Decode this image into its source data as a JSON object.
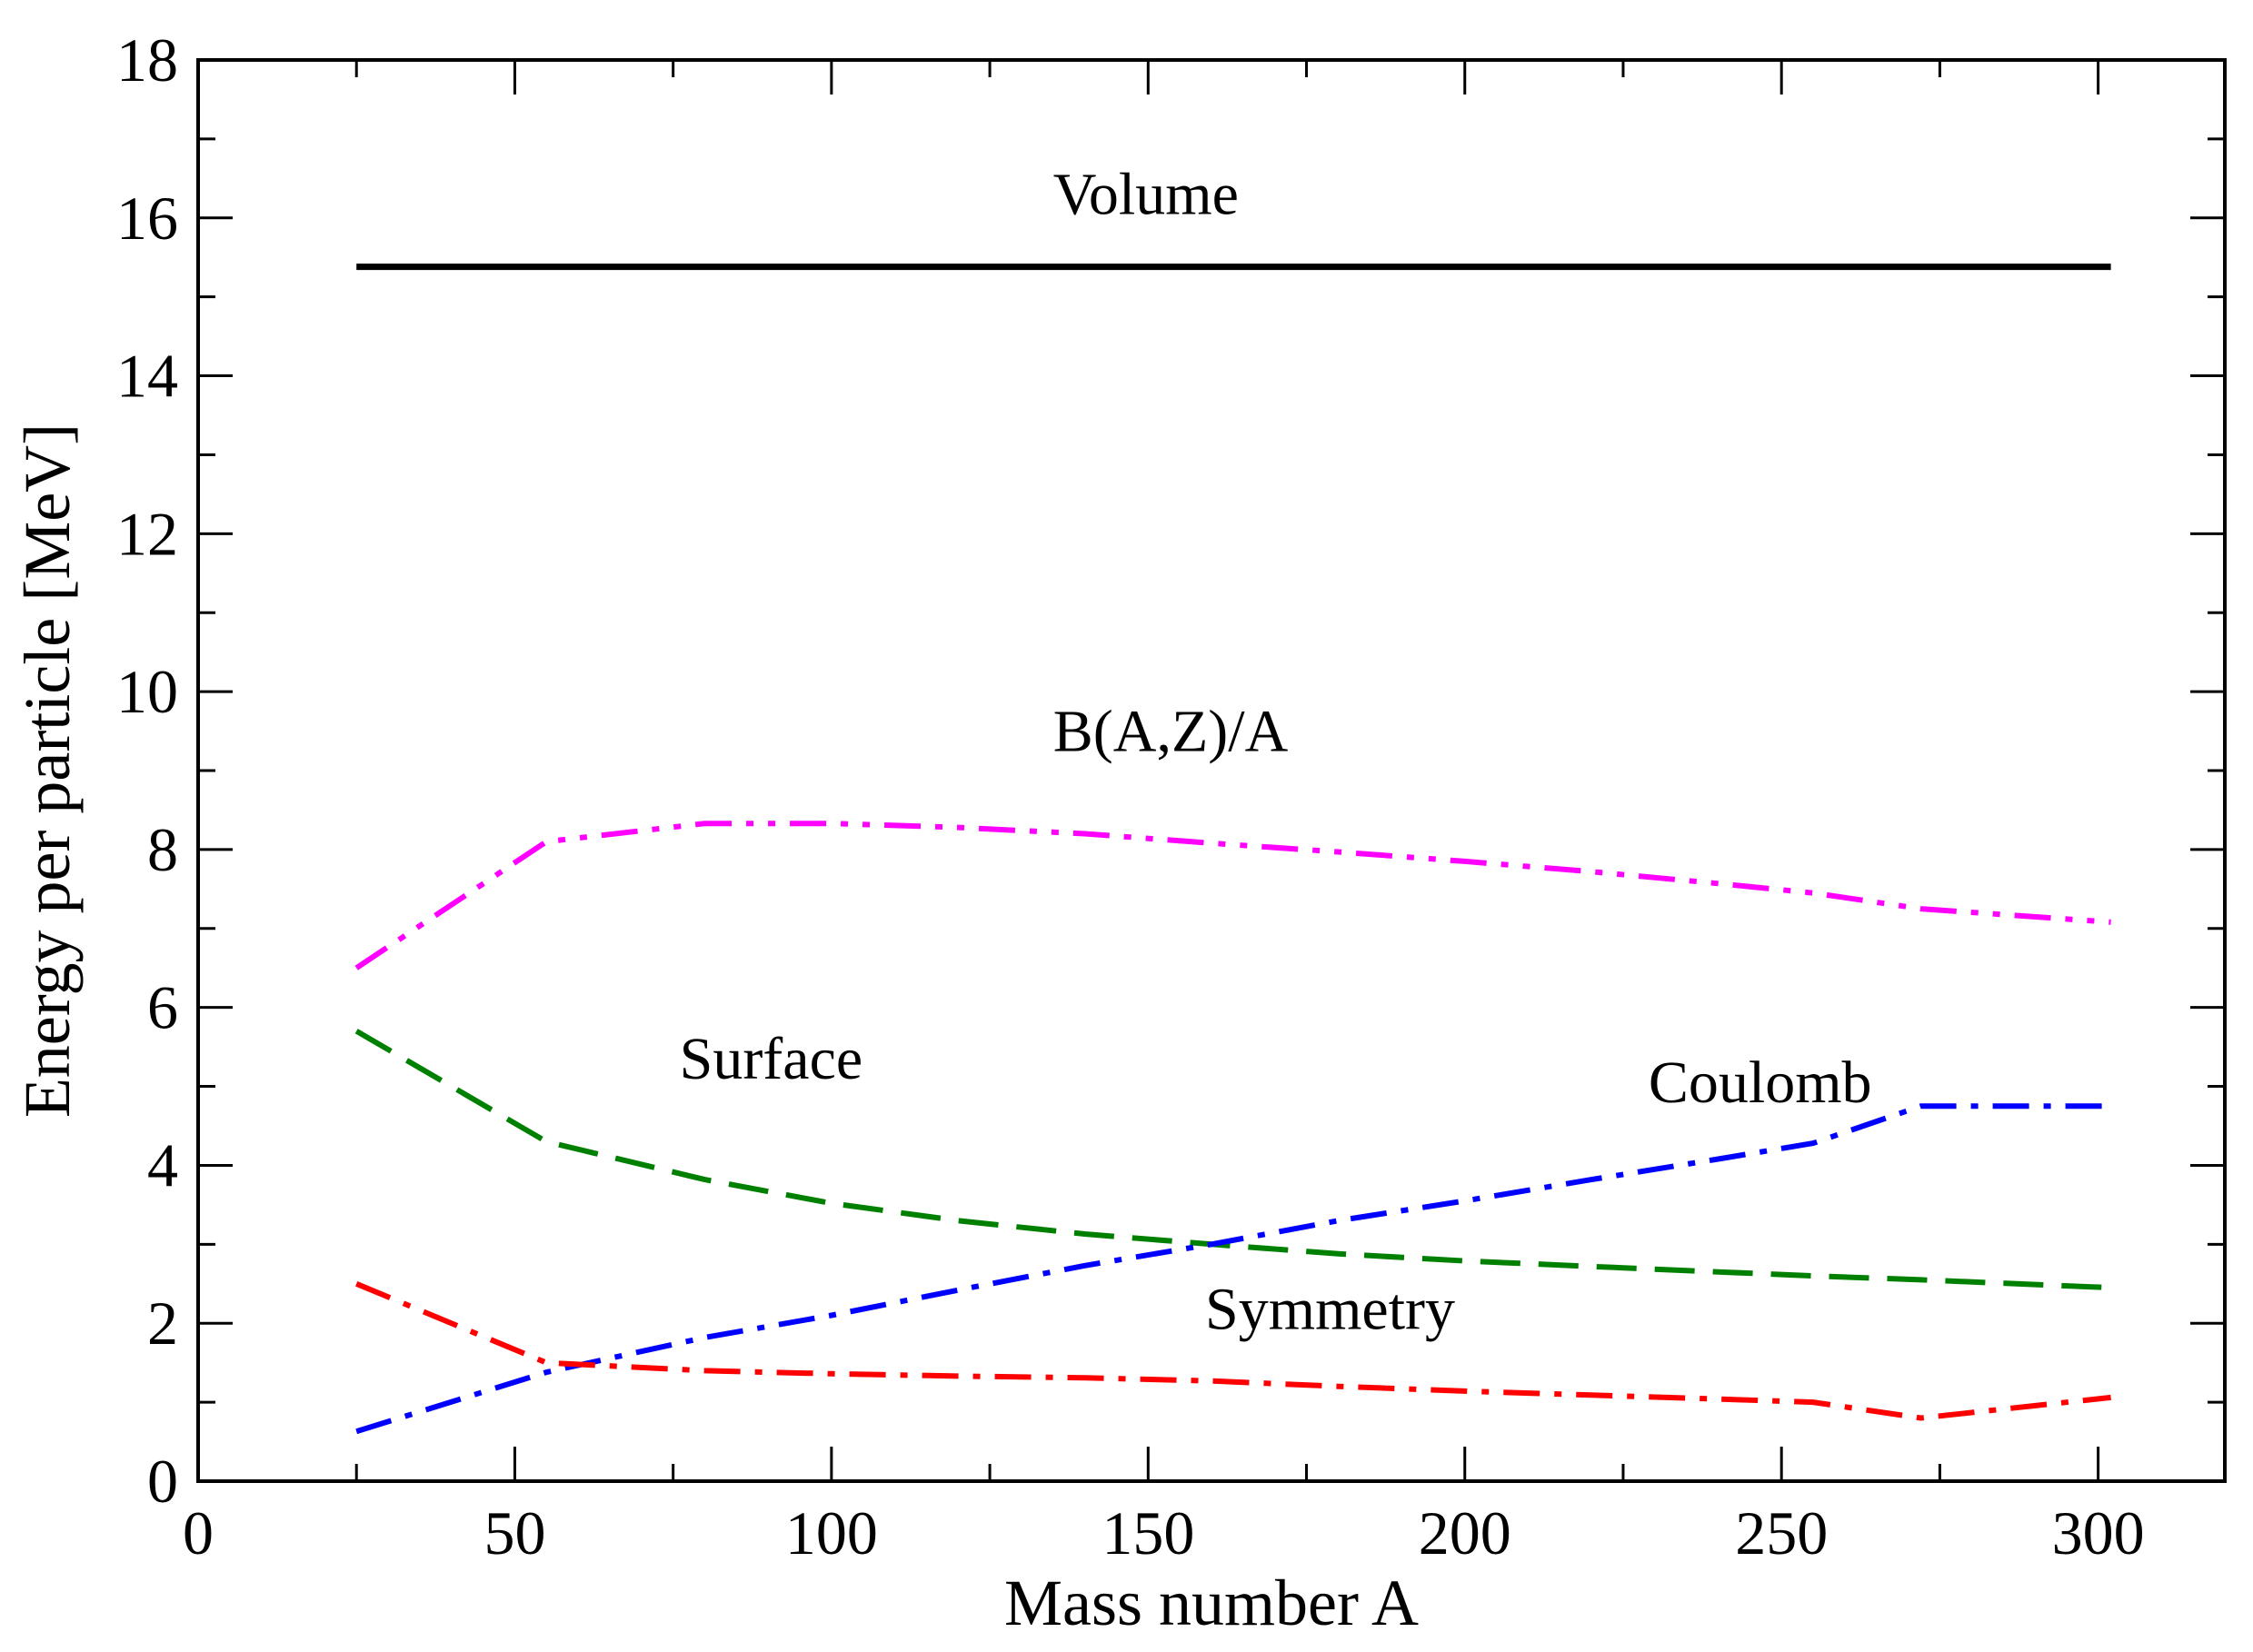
{
  "chart_data": {
    "type": "line",
    "title": "",
    "xlabel": "Mass number A",
    "ylabel": "Energy per particle [MeV]",
    "xlim": [
      0,
      320
    ],
    "ylim": [
      0,
      18
    ],
    "x_ticks": [
      0,
      50,
      100,
      150,
      200,
      250,
      300
    ],
    "y_ticks": [
      0,
      2,
      4,
      6,
      8,
      10,
      12,
      14,
      16,
      18
    ],
    "grid": false,
    "legend": "none",
    "series": [
      {
        "id": "volume",
        "color": "#000000",
        "style": "solid",
        "x": [
          25,
          302
        ],
        "y": [
          15.38,
          15.38
        ]
      },
      {
        "id": "binding",
        "color": "#ff00ff",
        "style": "dash-dot-dot",
        "x": [
          25,
          55,
          80,
          100,
          120,
          140,
          160,
          180,
          200,
          220,
          240,
          255,
          272,
          302
        ],
        "y": [
          6.5,
          8.1,
          8.33,
          8.33,
          8.28,
          8.2,
          8.08,
          7.97,
          7.85,
          7.72,
          7.57,
          7.45,
          7.25,
          7.08
        ]
      },
      {
        "id": "surface",
        "color": "#008000",
        "style": "dashed",
        "x": [
          25,
          55,
          80,
          100,
          120,
          140,
          160,
          180,
          200,
          220,
          240,
          255,
          272,
          302
        ],
        "y": [
          5.7,
          4.3,
          3.82,
          3.52,
          3.3,
          3.13,
          3.0,
          2.88,
          2.79,
          2.72,
          2.65,
          2.6,
          2.55,
          2.45
        ]
      },
      {
        "id": "coulomb",
        "color": "#0000ff",
        "style": "dash-dot",
        "x": [
          25,
          55,
          80,
          100,
          120,
          140,
          160,
          180,
          200,
          220,
          240,
          255,
          272,
          302
        ],
        "y": [
          0.63,
          1.38,
          1.82,
          2.1,
          2.42,
          2.73,
          3.0,
          3.3,
          3.55,
          3.82,
          4.08,
          4.28,
          4.75,
          4.75
        ]
      },
      {
        "id": "symmetry",
        "color": "#ff0000",
        "style": "dash-dot",
        "x": [
          25,
          55,
          80,
          100,
          120,
          140,
          160,
          180,
          200,
          220,
          240,
          255,
          272,
          302
        ],
        "y": [
          2.5,
          1.5,
          1.4,
          1.36,
          1.33,
          1.31,
          1.27,
          1.2,
          1.14,
          1.09,
          1.04,
          1.0,
          0.8,
          1.06
        ]
      }
    ],
    "annotations": [
      {
        "text": "Volume",
        "x": 135,
        "y": 16.05
      },
      {
        "text": "B(A,Z)/A",
        "x": 135,
        "y": 9.25
      },
      {
        "text": "Surface",
        "x": 76,
        "y": 5.1
      },
      {
        "text": "Coulomb",
        "x": 229,
        "y": 4.8
      },
      {
        "text": "Symmetry",
        "x": 159,
        "y": 1.93
      }
    ]
  }
}
